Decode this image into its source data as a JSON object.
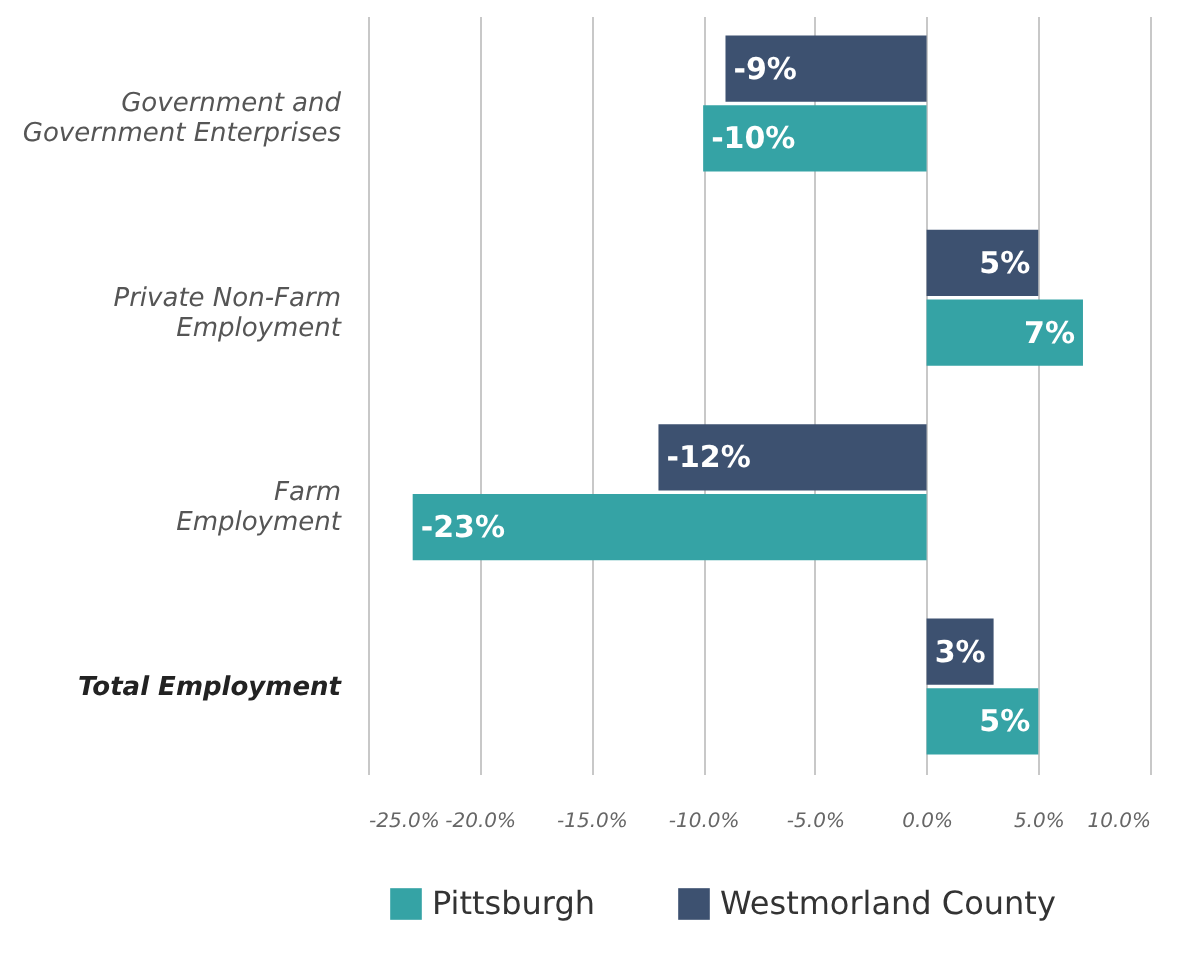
{
  "chart_data": {
    "type": "bar",
    "orientation": "horizontal",
    "categories": [
      "Government and\nGovernment Enterprises",
      "Private Non-Farm\nEmployment",
      "Farm\nEmployment",
      "Total Employment"
    ],
    "series": [
      {
        "name": "Pittsburgh",
        "color": "#35a3a5",
        "values": [
          -10,
          7,
          -23,
          5
        ],
        "value_labels": [
          "-10%",
          "7%",
          "-23%",
          "5%"
        ]
      },
      {
        "name": "Westmorland County",
        "color": "#3d5170",
        "values": [
          -9,
          5,
          -12,
          3
        ],
        "value_labels": [
          "-9%",
          "5%",
          "-12%",
          "3%"
        ]
      }
    ],
    "xlim": [
      -25,
      10
    ],
    "xticks": [
      {
        "value": -25,
        "label": "-25.0%"
      },
      {
        "value": -20,
        "label": "-20.0%"
      },
      {
        "value": -15,
        "label": "-15.0%"
      },
      {
        "value": -10,
        "label": "-10.0%"
      },
      {
        "value": -5,
        "label": "-5.0%"
      },
      {
        "value": 0,
        "label": "0.0%"
      },
      {
        "value": 5,
        "label": "5.0%"
      },
      {
        "value": 10,
        "label": "10.0%"
      }
    ],
    "grid": "x",
    "legend": "bottom"
  }
}
